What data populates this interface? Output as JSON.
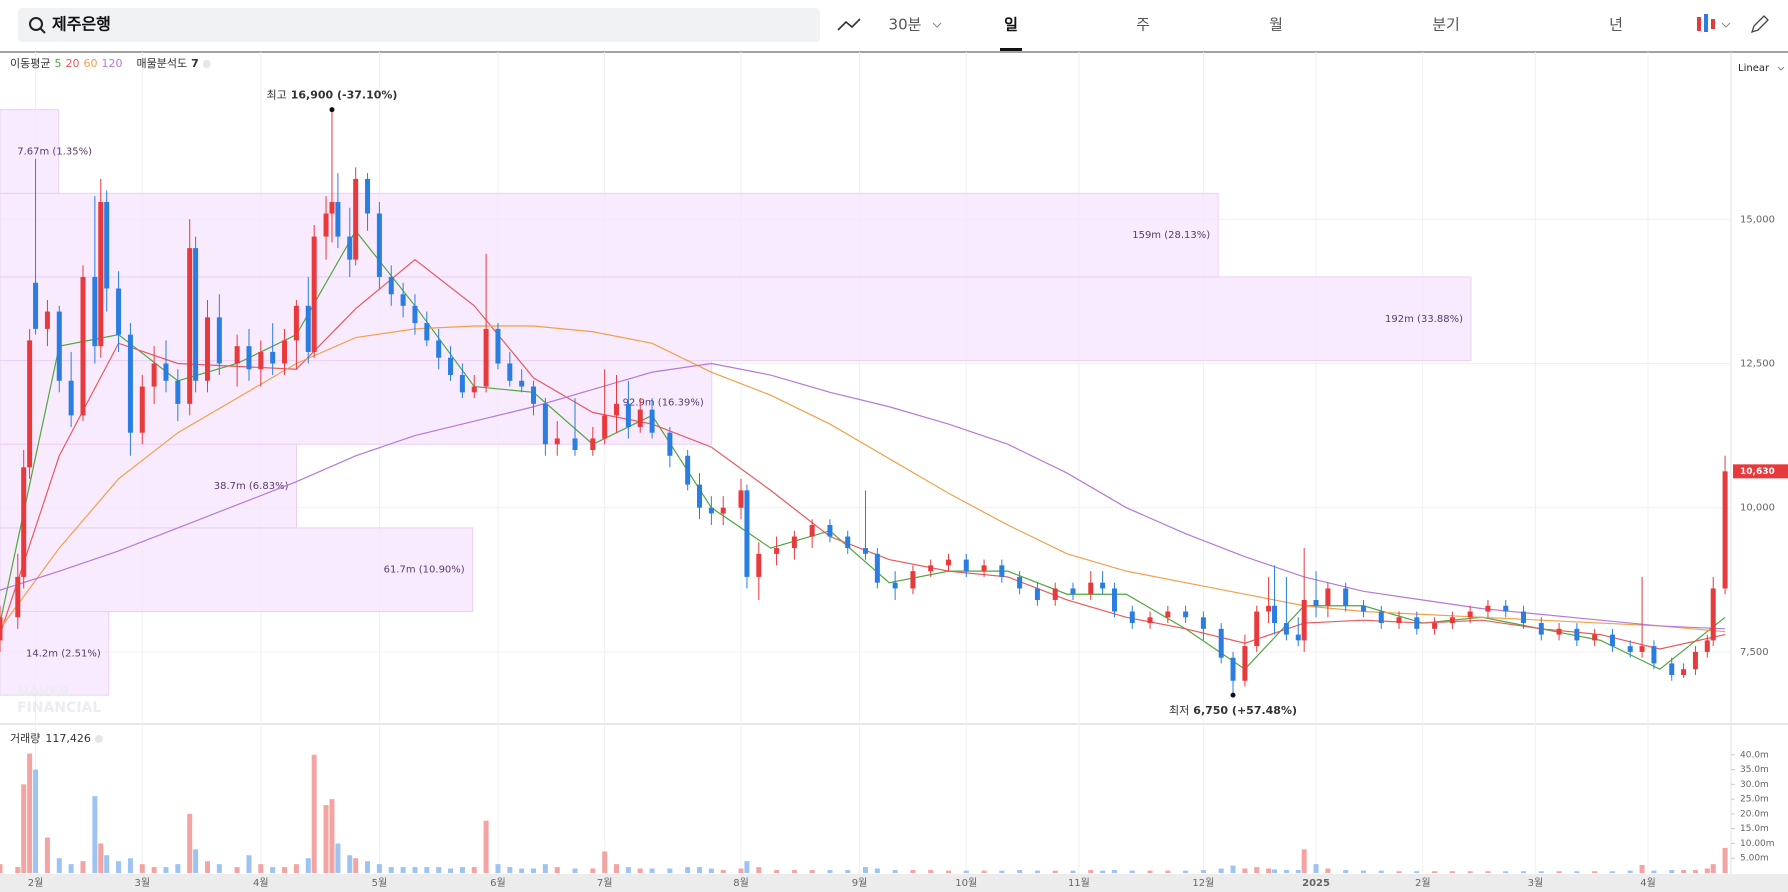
{
  "toolbar": {
    "search": "제주은행",
    "tabs": [
      "30분",
      "일",
      "주",
      "월",
      "분기",
      "년"
    ]
  },
  "chart_data": {
    "type": "candlestick",
    "scale": "Linear",
    "ma_label": "이동평균",
    "profile_label": "매물분석도",
    "profile_count": 7,
    "watermark": [
      "NAVER",
      "FINANCIAL"
    ],
    "xlim": [
      0,
      292
    ],
    "xticks": [
      {
        "value": 6,
        "label": "2월"
      },
      {
        "value": 24,
        "label": "3월"
      },
      {
        "value": 44,
        "label": "4월"
      },
      {
        "value": 64,
        "label": "5월"
      },
      {
        "value": 84,
        "label": "6월"
      },
      {
        "value": 102,
        "label": "7월"
      },
      {
        "value": 125,
        "label": "8월"
      },
      {
        "value": 145,
        "label": "9월"
      },
      {
        "value": 163,
        "label": "10월"
      },
      {
        "value": 182,
        "label": "11월"
      },
      {
        "value": 203,
        "label": "12월"
      },
      {
        "value": 222,
        "label": "2025"
      },
      {
        "value": 240,
        "label": "2월"
      },
      {
        "value": 259,
        "label": "3월"
      },
      {
        "value": 278,
        "label": "4월"
      }
    ],
    "ylim": [
      6250,
      17900
    ],
    "yticks": [
      {
        "value": 7500,
        "label": "7,500"
      },
      {
        "value": 10000,
        "label": "10,000"
      },
      {
        "value": 12500,
        "label": "12,500"
      },
      {
        "value": 15000,
        "label": "15,000"
      }
    ],
    "grid": true,
    "up_color": "#e8393c",
    "down_color": "#2a7de1",
    "x": [
      0,
      3,
      4,
      5,
      6,
      8,
      10,
      12,
      14,
      16,
      17,
      18,
      20,
      22,
      24,
      26,
      28,
      30,
      32,
      33,
      35,
      37,
      40,
      42,
      44,
      46,
      48,
      50,
      52,
      53,
      55,
      56,
      57,
      59,
      60,
      62,
      64,
      66,
      68,
      70,
      72,
      74,
      76,
      78,
      80,
      82,
      84,
      86,
      88,
      90,
      92,
      94,
      97,
      100,
      102,
      104,
      106,
      108,
      110,
      113,
      116,
      118,
      120,
      122,
      125,
      126,
      128,
      131,
      134,
      137,
      140,
      143,
      146,
      148,
      151,
      154,
      157,
      160,
      163,
      166,
      169,
      172,
      175,
      178,
      181,
      184,
      186,
      188,
      191,
      194,
      197,
      200,
      203,
      206,
      208,
      210,
      212,
      214,
      215,
      217,
      219,
      220,
      222,
      224,
      227,
      230,
      233,
      236,
      239,
      242,
      245,
      248,
      251,
      254,
      257,
      260,
      263,
      266,
      269,
      272,
      275,
      277,
      279,
      282,
      284,
      286,
      288,
      289,
      291
    ],
    "ohlc": [
      [
        7700,
        8300,
        7500,
        8100
      ],
      [
        8100,
        9200,
        7900,
        8800
      ],
      [
        8800,
        11000,
        8600,
        10700
      ],
      [
        10700,
        13100,
        10500,
        12900
      ],
      [
        13900,
        16050,
        13000,
        13100
      ],
      [
        13100,
        13600,
        12800,
        13400
      ],
      [
        13400,
        13500,
        12000,
        12200
      ],
      [
        12200,
        12700,
        11400,
        11600
      ],
      [
        11600,
        14200,
        11500,
        14000
      ],
      [
        14000,
        15400,
        12500,
        12800
      ],
      [
        12800,
        15700,
        12600,
        15300
      ],
      [
        15300,
        15500,
        13400,
        13800
      ],
      [
        13800,
        14100,
        12700,
        13000
      ],
      [
        13000,
        13200,
        10900,
        11300
      ],
      [
        11300,
        12300,
        11100,
        12100
      ],
      [
        12100,
        12800,
        11800,
        12500
      ],
      [
        12500,
        12900,
        12000,
        12200
      ],
      [
        12200,
        12400,
        11500,
        11800
      ],
      [
        11800,
        15000,
        11600,
        14500
      ],
      [
        14500,
        14700,
        12000,
        12200
      ],
      [
        12200,
        13600,
        12000,
        13300
      ],
      [
        13300,
        13700,
        12300,
        12500
      ],
      [
        12500,
        13000,
        12100,
        12800
      ],
      [
        12800,
        13100,
        12200,
        12400
      ],
      [
        12400,
        12900,
        12100,
        12700
      ],
      [
        12700,
        13200,
        12300,
        12500
      ],
      [
        12500,
        13100,
        12300,
        12900
      ],
      [
        12900,
        13600,
        12400,
        13500
      ],
      [
        13500,
        14000,
        12500,
        12700
      ],
      [
        12700,
        14900,
        12600,
        14700
      ],
      [
        14700,
        15400,
        14300,
        15100
      ],
      [
        15100,
        16900,
        14600,
        15300
      ],
      [
        15300,
        15800,
        14500,
        14700
      ],
      [
        14700,
        15200,
        14000,
        14300
      ],
      [
        14300,
        15900,
        14200,
        15700
      ],
      [
        15700,
        15800,
        14800,
        15100
      ],
      [
        15100,
        15300,
        13800,
        14000
      ],
      [
        14000,
        14200,
        13500,
        13700
      ],
      [
        13700,
        13900,
        13300,
        13500
      ],
      [
        13500,
        13700,
        13000,
        13200
      ],
      [
        13200,
        13400,
        12800,
        12900
      ],
      [
        12900,
        13100,
        12400,
        12600
      ],
      [
        12600,
        12800,
        12200,
        12300
      ],
      [
        12300,
        12500,
        11900,
        12000
      ],
      [
        12000,
        12300,
        11900,
        12100
      ],
      [
        12100,
        14400,
        12000,
        13100
      ],
      [
        13100,
        13200,
        12400,
        12500
      ],
      [
        12500,
        12700,
        12100,
        12200
      ],
      [
        12200,
        12400,
        12000,
        12100
      ],
      [
        12100,
        12200,
        11600,
        11800
      ],
      [
        11800,
        11900,
        10900,
        11100
      ],
      [
        11100,
        11500,
        10900,
        11200
      ],
      [
        11200,
        11900,
        10900,
        11000
      ],
      [
        11000,
        11400,
        10900,
        11200
      ],
      [
        11200,
        12400,
        11100,
        11600
      ],
      [
        11600,
        12300,
        11300,
        11800
      ],
      [
        11800,
        12200,
        11200,
        11400
      ],
      [
        11400,
        11900,
        11300,
        11700
      ],
      [
        11700,
        11900,
        11200,
        11300
      ],
      [
        11300,
        11400,
        10700,
        10900
      ],
      [
        10900,
        11000,
        10300,
        10400
      ],
      [
        10400,
        10600,
        9800,
        10000
      ],
      [
        10000,
        10200,
        9700,
        9900
      ],
      [
        9900,
        10200,
        9700,
        10000
      ],
      [
        10000,
        10500,
        9800,
        10300
      ],
      [
        10300,
        10400,
        8600,
        8800
      ],
      [
        8800,
        9400,
        8400,
        9200
      ],
      [
        9200,
        9500,
        9000,
        9300
      ],
      [
        9300,
        9600,
        9100,
        9500
      ],
      [
        9500,
        9800,
        9300,
        9700
      ],
      [
        9700,
        9800,
        9400,
        9500
      ],
      [
        9500,
        9600,
        9200,
        9300
      ],
      [
        9300,
        10300,
        9100,
        9200
      ],
      [
        9200,
        9300,
        8600,
        8700
      ],
      [
        8700,
        8900,
        8400,
        8600
      ],
      [
        8600,
        9000,
        8500,
        8900
      ],
      [
        8900,
        9100,
        8800,
        9000
      ],
      [
        9000,
        9200,
        8900,
        9100
      ],
      [
        9100,
        9200,
        8800,
        8900
      ],
      [
        8900,
        9100,
        8800,
        9000
      ],
      [
        9000,
        9100,
        8700,
        8800
      ],
      [
        8800,
        8900,
        8500,
        8600
      ],
      [
        8600,
        8700,
        8300,
        8400
      ],
      [
        8400,
        8700,
        8300,
        8600
      ],
      [
        8600,
        8700,
        8400,
        8500
      ],
      [
        8500,
        8900,
        8400,
        8700
      ],
      [
        8700,
        8900,
        8500,
        8600
      ],
      [
        8600,
        8700,
        8100,
        8200
      ],
      [
        8200,
        8300,
        7900,
        8000
      ],
      [
        8000,
        8200,
        7900,
        8100
      ],
      [
        8100,
        8300,
        8000,
        8200
      ],
      [
        8200,
        8300,
        8000,
        8100
      ],
      [
        8100,
        8200,
        7700,
        7900
      ],
      [
        7900,
        8000,
        7300,
        7400
      ],
      [
        7400,
        7500,
        6750,
        7000
      ],
      [
        7000,
        7800,
        6900,
        7600
      ],
      [
        7600,
        8300,
        7500,
        8200
      ],
      [
        8200,
        8800,
        8000,
        8300
      ],
      [
        8300,
        9000,
        7800,
        8000
      ],
      [
        8000,
        8800,
        7700,
        7800
      ],
      [
        7800,
        8100,
        7600,
        7700
      ],
      [
        7700,
        9300,
        7500,
        8400
      ],
      [
        8400,
        8900,
        8100,
        8300
      ],
      [
        8300,
        8700,
        8100,
        8600
      ],
      [
        8600,
        8700,
        8200,
        8300
      ],
      [
        8300,
        8400,
        8100,
        8200
      ],
      [
        8200,
        8300,
        7900,
        8000
      ],
      [
        8000,
        8200,
        7900,
        8100
      ],
      [
        8100,
        8200,
        7800,
        7900
      ],
      [
        7900,
        8100,
        7800,
        8000
      ],
      [
        8000,
        8200,
        7900,
        8100
      ],
      [
        8100,
        8300,
        8000,
        8200
      ],
      [
        8200,
        8400,
        8100,
        8300
      ],
      [
        8300,
        8400,
        8100,
        8200
      ],
      [
        8200,
        8300,
        7900,
        8000
      ],
      [
        8000,
        8100,
        7700,
        7800
      ],
      [
        7800,
        8000,
        7700,
        7900
      ],
      [
        7900,
        8000,
        7600,
        7700
      ],
      [
        7700,
        7900,
        7600,
        7800
      ],
      [
        7800,
        7900,
        7500,
        7600
      ],
      [
        7600,
        7700,
        7400,
        7500
      ],
      [
        7500,
        8800,
        7400,
        7600
      ],
      [
        7600,
        7700,
        7200,
        7300
      ],
      [
        7300,
        7400,
        7000,
        7100
      ],
      [
        7100,
        7300,
        7050,
        7200
      ],
      [
        7200,
        7600,
        7100,
        7500
      ],
      [
        7500,
        7800,
        7400,
        7700
      ],
      [
        7700,
        8800,
        7600,
        8600
      ],
      [
        8600,
        10900,
        8500,
        10630
      ]
    ],
    "ma_x": [
      0,
      10,
      20,
      30,
      40,
      50,
      60,
      70,
      80,
      90,
      100,
      110,
      120,
      130,
      140,
      150,
      160,
      170,
      180,
      190,
      200,
      210,
      220,
      230,
      240,
      250,
      260,
      270,
      280,
      291
    ],
    "ma": [
      {
        "name": "5",
        "color": "#4fa83d",
        "values": [
          8000,
          12800,
          13000,
          12200,
          12500,
          13000,
          14800,
          13500,
          12100,
          12000,
          11100,
          11600,
          10000,
          9300,
          9600,
          8700,
          8900,
          8900,
          8500,
          8500,
          7900,
          7200,
          8300,
          8300,
          8000,
          8100,
          7900,
          7700,
          7200,
          8100
        ]
      },
      {
        "name": "20",
        "color": "#e85a5d",
        "values": [
          7800,
          10900,
          12850,
          12500,
          12450,
          12400,
          13450,
          14300,
          13500,
          12250,
          11650,
          11450,
          11050,
          10300,
          9500,
          9100,
          8900,
          8800,
          8400,
          8100,
          7900,
          7650,
          8000,
          8050,
          8000,
          8050,
          7900,
          7800,
          7550,
          7800
        ]
      },
      {
        "name": "60",
        "color": "#f2a04a",
        "values": [
          7900,
          9300,
          10500,
          11300,
          11900,
          12500,
          12950,
          13100,
          13150,
          13150,
          13050,
          12850,
          12350,
          11950,
          11450,
          10850,
          10250,
          9700,
          9200,
          8900,
          8700,
          8500,
          8300,
          8200,
          8150,
          8100,
          8050,
          8000,
          7950,
          7850
        ]
      },
      {
        "name": "120",
        "color": "#b57ad8",
        "values": [
          8570,
          8900,
          9250,
          9650,
          10050,
          10450,
          10900,
          11250,
          11500,
          11750,
          12050,
          12350,
          12500,
          12300,
          12000,
          11750,
          11450,
          11100,
          10600,
          10000,
          9550,
          9150,
          8800,
          8550,
          8400,
          8250,
          8150,
          8050,
          7950,
          7900
        ]
      }
    ],
    "profile": {
      "bins": [
        6750,
        8200,
        9650,
        11100,
        12550,
        14000,
        15450,
        16900
      ],
      "values": [
        14.2,
        61.7,
        38.7,
        92.9,
        192,
        159,
        7.67
      ],
      "value_labels": [
        "14.2m (2.51%)",
        "61.7m (10.90%)",
        "38.7m (6.83%)",
        "92.9m (16.39%)",
        "192m (33.88%)",
        "159m (28.13%)",
        "7.67m (1.35%)"
      ],
      "color": "#f6e4fc"
    },
    "high": {
      "label": "최고",
      "x": 56,
      "value": 16900,
      "value_label": "16,900 (-37.10%)"
    },
    "low": {
      "label": "최저",
      "x": 208,
      "value": 6750,
      "value_label": "6,750 (+57.48%)"
    },
    "last_price": {
      "value": 10630,
      "label": "10,630"
    },
    "volume_label": "거래량",
    "last_volume": {
      "value": 117426,
      "label": "117,426"
    },
    "volume_ylim": [
      0,
      45
    ],
    "volume_yticks": [
      {
        "value": 5,
        "label": "5.00m"
      },
      {
        "value": 10,
        "label": "10.00m"
      },
      {
        "value": 15,
        "label": "15.0m"
      },
      {
        "value": 20,
        "label": "20.0m"
      },
      {
        "value": 25,
        "label": "25.0m"
      },
      {
        "value": 30,
        "label": "30.0m"
      },
      {
        "value": 35,
        "label": "35.0m"
      },
      {
        "value": 40,
        "label": "40.0m"
      }
    ],
    "volume_up_color": "#f4a3a3",
    "volume_down_color": "#9cc3f2",
    "volume": [
      3,
      2,
      30,
      40.4,
      35,
      12,
      5,
      3,
      4,
      26,
      10,
      6,
      4,
      5,
      3,
      2,
      2,
      3,
      20,
      8,
      4,
      3,
      2,
      6,
      3,
      2,
      2,
      3,
      5,
      40,
      23,
      25,
      10,
      6,
      5,
      4,
      3,
      2,
      2,
      2,
      2,
      2,
      1.5,
      2,
      2,
      17.7,
      3,
      2,
      1.5,
      1.5,
      3,
      2,
      1.5,
      1.5,
      7.3,
      3,
      2,
      1.5,
      1.5,
      1.5,
      2,
      2,
      1.5,
      1,
      1.5,
      4,
      2,
      1,
      1,
      1,
      1,
      1,
      2,
      1.5,
      1,
      1,
      1,
      0.8,
      0.8,
      0.8,
      0.8,
      1,
      0.8,
      0.8,
      0.8,
      1,
      0.8,
      1,
      0.8,
      0.8,
      0.8,
      0.8,
      1,
      1.5,
      2.5,
      1.5,
      2,
      1.5,
      1.2,
      1,
      1,
      8,
      3,
      1.5,
      1,
      0.8,
      0.8,
      0.6,
      0.6,
      0.6,
      0.6,
      0.6,
      0.6,
      0.6,
      0.6,
      0.6,
      0.6,
      0.6,
      0.6,
      0.6,
      0.8,
      2.7,
      0.8,
      1,
      1,
      1,
      1.5,
      3,
      8.5
    ]
  }
}
